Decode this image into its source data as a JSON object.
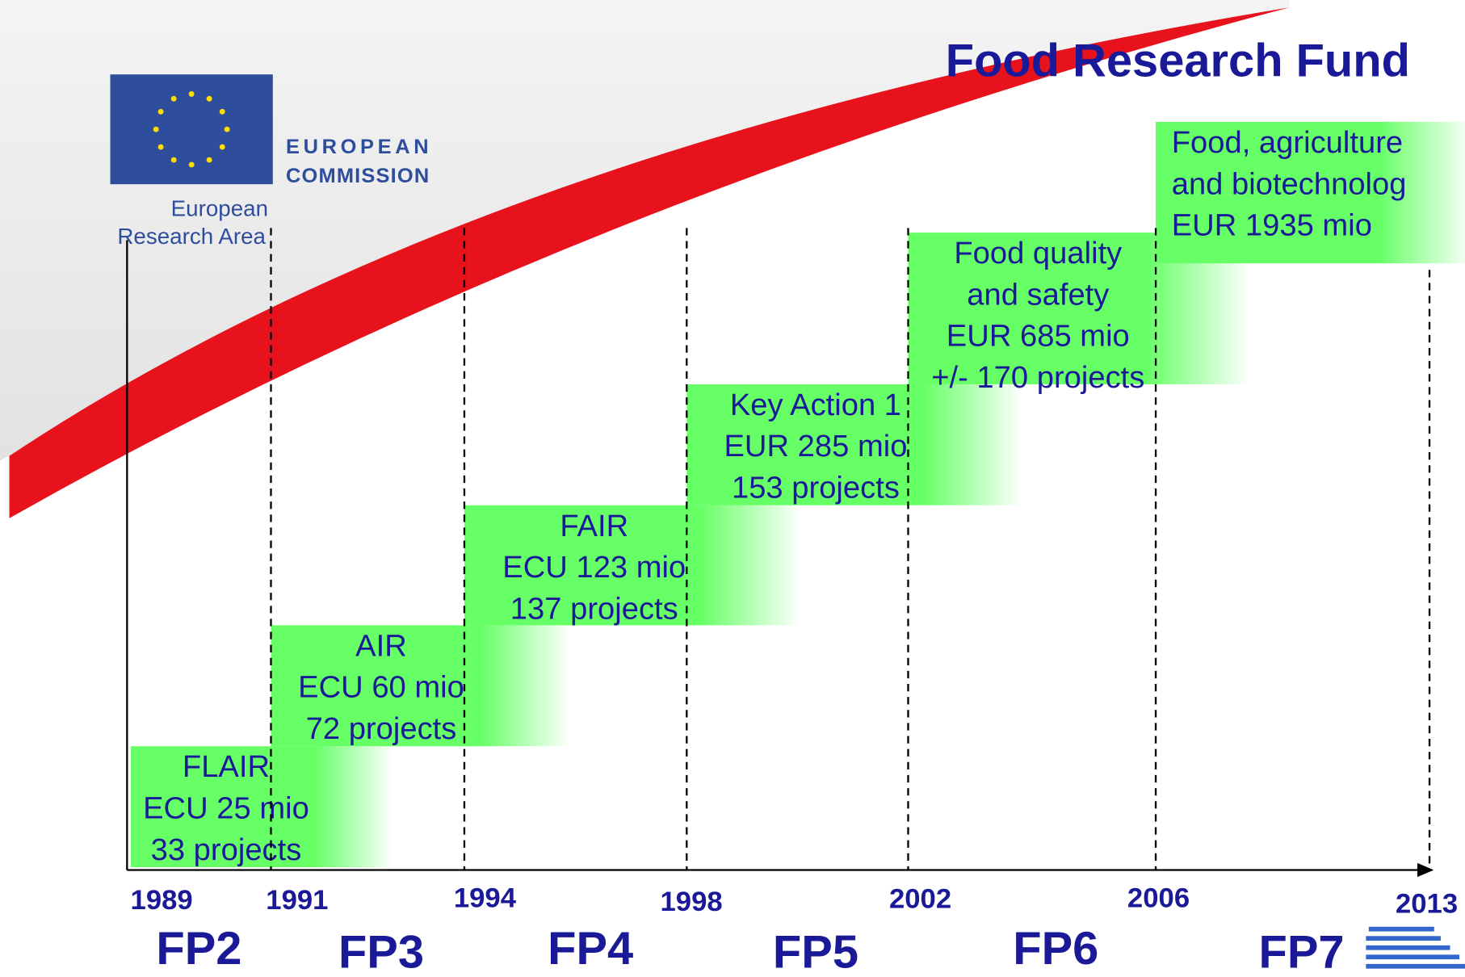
{
  "title": "Food Research Fund",
  "logo": {
    "line1": "EUROPEAN",
    "line2": "COMMISSION",
    "area1": "European",
    "area2": "Research Area"
  },
  "programmes": [
    {
      "lines": [
        "FLAIR",
        "ECU 25 mio",
        "33 projects"
      ]
    },
    {
      "lines": [
        "AIR",
        "ECU 60 mio",
        "72 projects"
      ]
    },
    {
      "lines": [
        "FAIR",
        "ECU 123 mio",
        "137 projects"
      ]
    },
    {
      "lines": [
        "Key Action 1",
        "EUR 285 mio",
        "153 projects"
      ]
    },
    {
      "lines": [
        "Food quality",
        "and safety",
        "EUR 685 mio",
        "+/- 170 projects"
      ]
    },
    {
      "lines": [
        "Food, agriculture",
        "and biotechnolog",
        "EUR 1935 mio"
      ]
    }
  ],
  "years": [
    "1989",
    "1991",
    "1994",
    "1998",
    "2002",
    "2006",
    "2013"
  ],
  "frameworks": [
    "FP2",
    "FP3",
    "FP4",
    "FP5",
    "FP6",
    "FP7"
  ]
}
